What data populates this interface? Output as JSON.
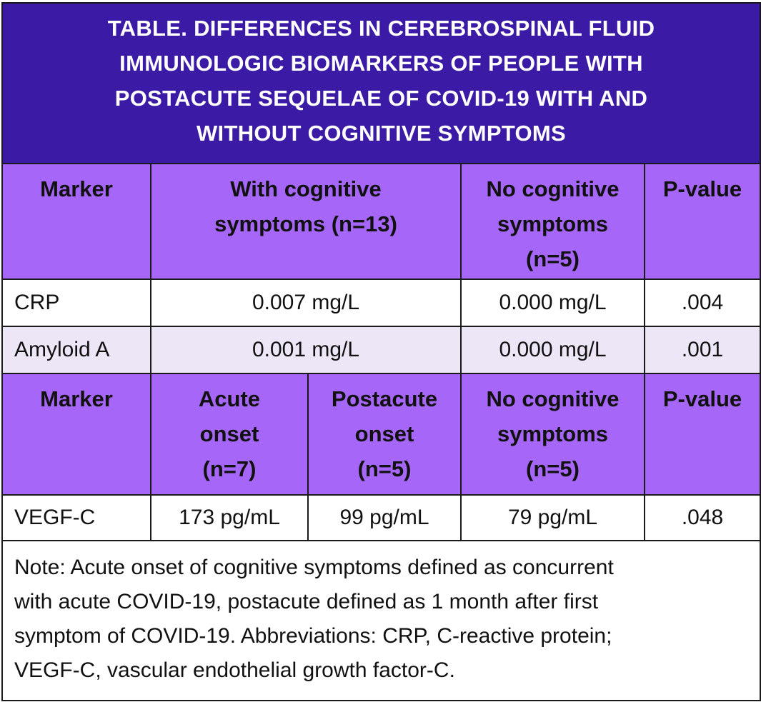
{
  "title_lines": [
    "TABLE. DIFFERENCES IN CEREBROSPINAL FLUID",
    "IMMUNOLOGIC BIOMARKERS OF PEOPLE WITH",
    "POSTACUTE SEQUELAE OF COVID-19 WITH AND",
    "WITHOUT COGNITIVE SYMPTOMS"
  ],
  "header1": {
    "marker": "Marker",
    "with_cognitive": [
      "With cognitive",
      "symptoms (n=13)"
    ],
    "no_cognitive": [
      "No cognitive",
      "symptoms",
      "(n=5)"
    ],
    "p_value": "P-value"
  },
  "rows1": [
    {
      "marker": "CRP",
      "with": "0.007 mg/L",
      "without": "0.000 mg/L",
      "p": ".004"
    },
    {
      "marker": "Amyloid A",
      "with": "0.001 mg/L",
      "without": "0.000 mg/L",
      "p": ".001"
    }
  ],
  "header2": {
    "marker": "Marker",
    "acute": [
      "Acute",
      "onset",
      "(n=7)"
    ],
    "postacute": [
      "Postacute",
      "onset",
      "(n=5)"
    ],
    "no_cognitive": [
      "No cognitive",
      "symptoms",
      "(n=5)"
    ],
    "p_value": "P-value"
  },
  "rows2": [
    {
      "marker": "VEGF-C",
      "acute": "173 pg/mL",
      "postacute": "99 pg/mL",
      "without": "79 pg/mL",
      "p": ".048"
    }
  ],
  "note_lines": [
    "Note: Acute onset of cognitive symptoms defined as concurrent",
    "with acute COVID-19, postacute defined as 1 month after first",
    "symptom of COVID-19. Abbreviations: CRP, C-reactive protein;",
    "VEGF-C, vascular endothelial growth factor-C."
  ],
  "colors": {
    "title_bg": "#3b1aa5",
    "header_bg": "#a666f8",
    "row_alt_bg": "#ece6f6"
  }
}
